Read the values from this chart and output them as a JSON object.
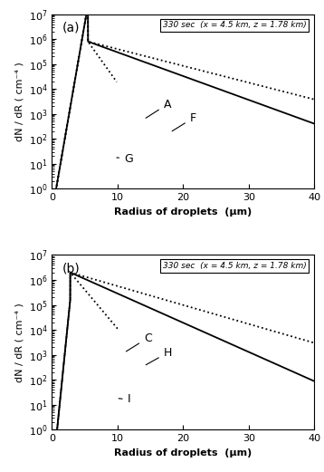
{
  "annotation_a": "330 sec  (x = 4.5 km, z = 1.78 km)",
  "annotation_b": "330 sec  (x = 4.5 km, z = 1.78 km)",
  "xlabel": "Radius of droplets  (μm)",
  "ylabel": "dN / dR ( cm⁻⁴ )",
  "panel_a_label": "(a)",
  "panel_b_label": "(b)",
  "xlim": [
    0,
    40
  ],
  "ylim_log": [
    1,
    10000000.0
  ],
  "label_A": "A",
  "label_F": "F",
  "label_G": "G",
  "label_C": "C",
  "label_H": "H",
  "label_I": "I",
  "bg_color": "#ffffff",
  "line_color": "#000000"
}
